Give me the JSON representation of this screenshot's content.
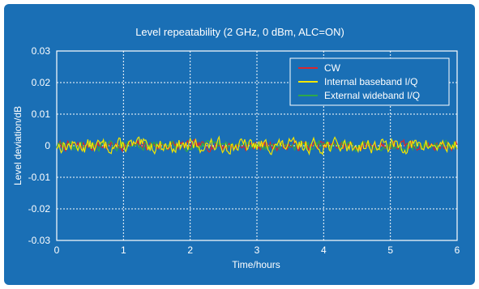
{
  "chart_data": {
    "type": "line",
    "title": "Level repeatability (2 GHz, 0 dBm, ALC=ON)",
    "xlabel": "Time/hours",
    "ylabel": "Level deviation/dB",
    "xlim": [
      0,
      6
    ],
    "ylim": [
      -0.03,
      0.03
    ],
    "x_ticks": [
      "0",
      "1",
      "2",
      "3",
      "4",
      "5",
      "6"
    ],
    "y_ticks": [
      "0.03",
      "0.02",
      "0.01",
      "0",
      "-0.01",
      "-0.02",
      "-0.03"
    ],
    "grid": true,
    "legend_position": "top-right",
    "series": [
      {
        "name": "CW",
        "color": "#d8262e",
        "amplitude": 0.0013,
        "seed": 7
      },
      {
        "name": "Internal baseband I/Q",
        "color": "#f2e600",
        "amplitude": 0.0019,
        "seed": 13
      },
      {
        "name": "External wideband I/Q",
        "color": "#2ea84a",
        "amplitude": 0.0012,
        "seed": 29
      }
    ],
    "samples_per_hour": 60
  }
}
